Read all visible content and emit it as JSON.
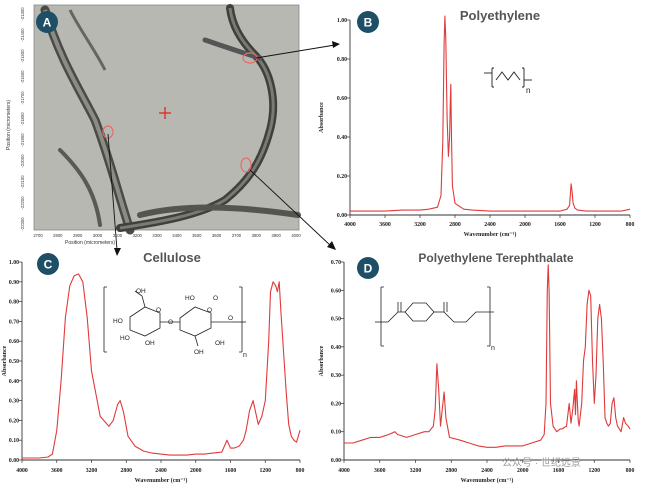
{
  "panels": {
    "a": {
      "badge": "A"
    },
    "b": {
      "badge": "B"
    },
    "c": {
      "badge": "C"
    },
    "d": {
      "badge": "D"
    }
  },
  "micrograph": {
    "x_axis_label": "Position (micrometers)",
    "y_axis_label": "Position (micrometers)",
    "x_ticks": [
      "2700",
      "2800",
      "2900",
      "3000",
      "3100",
      "3200",
      "3300",
      "3400",
      "3500",
      "3600",
      "3700",
      "3800",
      "3900",
      "4000"
    ],
    "y_ticks": [
      "-21300",
      "-21400",
      "-21500",
      "-21600",
      "-21700",
      "-21800",
      "-21900",
      "-22000",
      "-22100",
      "-22200",
      "-22300"
    ]
  },
  "structures": {
    "polyethylene_repeat": "n",
    "cellulose_repeat": "n",
    "pet_repeat": "n",
    "cellulose_labels": [
      "OH",
      "HO",
      "HO",
      "O",
      "O",
      "OH",
      "O",
      "HO",
      "OH",
      "O",
      "OH",
      "O"
    ]
  },
  "watermark": "公众号 · 世纪远景",
  "colors": {
    "line": "#e03a3a",
    "badge": "#1f4f66",
    "axis": "#333333"
  },
  "chart_data": [
    {
      "id": "B",
      "type": "line",
      "title": "Polyethylene",
      "xlabel": "Wavenumber (cm⁻¹)",
      "ylabel": "Absorbance",
      "xlim": [
        4000,
        800
      ],
      "x_reversed": true,
      "ylim": [
        0,
        1.0
      ],
      "xticks": [
        4000,
        3600,
        3200,
        2800,
        2400,
        2000,
        1600,
        1200,
        800
      ],
      "xtick_labels": [
        "4000",
        "3600",
        "3200",
        "2800",
        "2400",
        "2000",
        "1600",
        "1200",
        "800"
      ],
      "yticks": [
        0,
        0.2,
        0.4,
        0.6,
        0.8,
        1.0
      ],
      "ytick_labels": [
        "0.00",
        "0.20",
        "0.40",
        "0.60",
        "0.80",
        "1.00"
      ],
      "x": [
        4000,
        3800,
        3600,
        3400,
        3200,
        3100,
        3000,
        2960,
        2940,
        2925,
        2915,
        2905,
        2890,
        2875,
        2862,
        2853,
        2848,
        2840,
        2830,
        2800,
        2700,
        2600,
        2400,
        2200,
        2000,
        1800,
        1700,
        1600,
        1520,
        1490,
        1473,
        1462,
        1450,
        1430,
        1400,
        1300,
        1200,
        1100,
        1000,
        900,
        800
      ],
      "series": [
        {
          "values": [
            0.02,
            0.02,
            0.02,
            0.025,
            0.025,
            0.03,
            0.04,
            0.1,
            0.38,
            0.88,
            1.02,
            0.9,
            0.5,
            0.3,
            0.4,
            0.6,
            0.67,
            0.4,
            0.15,
            0.06,
            0.03,
            0.025,
            0.02,
            0.02,
            0.02,
            0.02,
            0.02,
            0.02,
            0.03,
            0.05,
            0.16,
            0.12,
            0.06,
            0.035,
            0.025,
            0.02,
            0.02,
            0.02,
            0.02,
            0.02,
            0.03
          ]
        }
      ]
    },
    {
      "id": "C",
      "type": "line",
      "title": "Cellulose",
      "xlabel": "Wavenumber (cm⁻¹)",
      "ylabel": "Absorbance",
      "xlim": [
        4000,
        800
      ],
      "x_reversed": true,
      "ylim": [
        0,
        1.0
      ],
      "xticks": [
        4000,
        3600,
        3200,
        2800,
        2400,
        2000,
        1600,
        1200,
        800
      ],
      "xtick_labels": [
        "4000",
        "3600",
        "3200",
        "2800",
        "2400",
        "2000",
        "1600",
        "1200",
        "800"
      ],
      "yticks": [
        0,
        0.1,
        0.2,
        0.3,
        0.4,
        0.5,
        0.6,
        0.7,
        0.8,
        0.9,
        1.0
      ],
      "ytick_labels": [
        "0.00",
        "0.10",
        "0.20",
        "0.30",
        "0.40",
        "0.50",
        "0.60",
        "0.70",
        "0.80",
        "0.90",
        "1.00"
      ],
      "x": [
        4000,
        3800,
        3700,
        3650,
        3600,
        3550,
        3500,
        3450,
        3400,
        3350,
        3300,
        3250,
        3200,
        3100,
        3000,
        2950,
        2900,
        2870,
        2830,
        2780,
        2700,
        2600,
        2500,
        2400,
        2300,
        2200,
        2100,
        2000,
        1900,
        1800,
        1700,
        1640,
        1600,
        1560,
        1500,
        1450,
        1420,
        1380,
        1340,
        1320,
        1280,
        1240,
        1200,
        1160,
        1140,
        1110,
        1080,
        1060,
        1040,
        1020,
        990,
        960,
        930,
        900,
        870,
        840,
        820,
        800
      ],
      "series": [
        {
          "values": [
            0.01,
            0.01,
            0.015,
            0.03,
            0.15,
            0.4,
            0.72,
            0.88,
            0.93,
            0.94,
            0.9,
            0.72,
            0.45,
            0.22,
            0.17,
            0.2,
            0.28,
            0.3,
            0.24,
            0.12,
            0.07,
            0.045,
            0.035,
            0.03,
            0.025,
            0.025,
            0.025,
            0.03,
            0.03,
            0.035,
            0.04,
            0.1,
            0.06,
            0.06,
            0.07,
            0.1,
            0.15,
            0.25,
            0.3,
            0.26,
            0.18,
            0.22,
            0.3,
            0.6,
            0.85,
            0.9,
            0.88,
            0.85,
            0.9,
            0.75,
            0.55,
            0.35,
            0.18,
            0.12,
            0.1,
            0.09,
            0.12,
            0.15
          ]
        }
      ]
    },
    {
      "id": "D",
      "type": "line",
      "title": "Polyethylene Terephthalate",
      "xlabel": "Wavenumber (cm⁻¹)",
      "ylabel": "Absorbance",
      "xlim": [
        4000,
        800
      ],
      "x_reversed": true,
      "ylim": [
        0,
        0.7
      ],
      "xticks": [
        4000,
        3600,
        3200,
        2800,
        2400,
        2000,
        1600,
        1200,
        800
      ],
      "xtick_labels": [
        "4000",
        "3600",
        "3200",
        "2800",
        "2400",
        "2000",
        "1600",
        "1200",
        "800"
      ],
      "yticks": [
        0,
        0.1,
        0.2,
        0.3,
        0.4,
        0.5,
        0.6,
        0.7
      ],
      "ytick_labels": [
        "0.00",
        "0.10",
        "0.20",
        "0.30",
        "0.40",
        "0.50",
        "0.60",
        "0.70"
      ],
      "x": [
        4000,
        3900,
        3800,
        3700,
        3600,
        3500,
        3430,
        3400,
        3300,
        3200,
        3100,
        3050,
        3000,
        2980,
        2960,
        2940,
        2920,
        2900,
        2880,
        2860,
        2820,
        2700,
        2600,
        2500,
        2400,
        2300,
        2200,
        2100,
        2000,
        1900,
        1800,
        1760,
        1740,
        1725,
        1715,
        1705,
        1690,
        1660,
        1620,
        1580,
        1560,
        1510,
        1480,
        1460,
        1440,
        1420,
        1410,
        1400,
        1380,
        1370,
        1340,
        1320,
        1300,
        1280,
        1260,
        1240,
        1220,
        1200,
        1180,
        1160,
        1140,
        1120,
        1100,
        1090,
        1080,
        1060,
        1040,
        1020,
        1000,
        980,
        960,
        940,
        900,
        872,
        850,
        820,
        800
      ],
      "series": [
        {
          "values": [
            0.06,
            0.06,
            0.07,
            0.08,
            0.08,
            0.09,
            0.1,
            0.09,
            0.08,
            0.09,
            0.1,
            0.1,
            0.12,
            0.18,
            0.34,
            0.25,
            0.12,
            0.18,
            0.24,
            0.15,
            0.08,
            0.07,
            0.06,
            0.05,
            0.045,
            0.045,
            0.05,
            0.05,
            0.05,
            0.06,
            0.07,
            0.09,
            0.2,
            0.6,
            0.69,
            0.6,
            0.2,
            0.12,
            0.1,
            0.11,
            0.11,
            0.12,
            0.2,
            0.13,
            0.18,
            0.25,
            0.16,
            0.28,
            0.14,
            0.12,
            0.2,
            0.35,
            0.4,
            0.55,
            0.6,
            0.58,
            0.35,
            0.2,
            0.3,
            0.5,
            0.55,
            0.5,
            0.35,
            0.25,
            0.15,
            0.13,
            0.12,
            0.13,
            0.2,
            0.22,
            0.15,
            0.12,
            0.1,
            0.15,
            0.13,
            0.12,
            0.11
          ]
        }
      ]
    }
  ]
}
